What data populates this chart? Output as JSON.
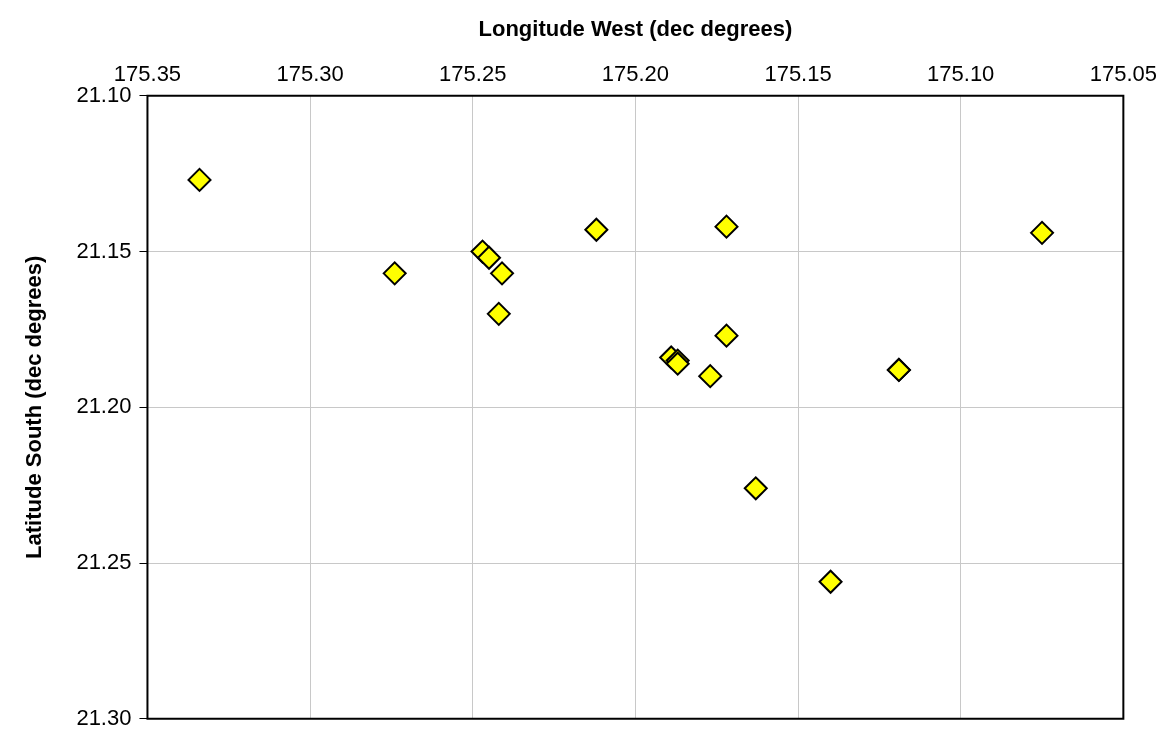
{
  "chart_data": {
    "type": "scatter",
    "xlabel": "Longitude West (dec degrees)",
    "ylabel": "Latitude South (dec degrees)",
    "x": [
      175.334,
      175.274,
      175.247,
      175.245,
      175.241,
      175.242,
      175.212,
      175.172,
      175.172,
      175.189,
      175.187,
      175.187,
      175.177,
      175.119,
      175.119,
      175.163,
      175.14,
      175.075
    ],
    "values": [
      21.127,
      21.157,
      21.15,
      21.152,
      21.157,
      21.17,
      21.143,
      21.142,
      21.177,
      21.184,
      21.185,
      21.186,
      21.19,
      21.188,
      21.188,
      21.226,
      21.256,
      21.144
    ],
    "color": "#ffff00",
    "xlim": [
      175.35,
      175.05
    ],
    "xticks": [
      175.35,
      {
        "value": 175.3,
        "label": "175.30"
      },
      175.25,
      {
        "value": 175.2,
        "label": "175.20"
      },
      175.15,
      {
        "value": 175.1,
        "label": "175.10"
      },
      175.05
    ],
    "ylim": [
      21.3,
      21.1
    ],
    "yticks": [
      {
        "value": 21.1,
        "label": "21.10"
      },
      21.15,
      {
        "value": 21.2,
        "label": "21.20"
      },
      21.25,
      {
        "value": 21.3,
        "label": "21.30"
      }
    ],
    "grid": true,
    "marker": "diamond",
    "legend": false
  }
}
